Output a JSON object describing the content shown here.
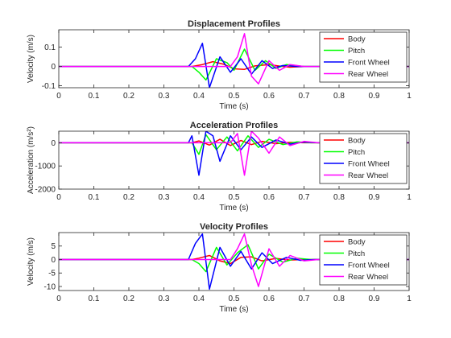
{
  "colors": {
    "Body": "#ff0000",
    "Pitch": "#00ff00",
    "Front Wheel": "#0000ff",
    "Rear Wheel": "#ff00ff"
  },
  "chart_data": [
    {
      "type": "line",
      "title": "Displacement Profiles",
      "xlabel": "Time (s)",
      "ylabel": "Velocity (m/s)",
      "xlim": [
        0,
        1
      ],
      "ylim": [
        -0.11,
        0.19
      ],
      "xticks": [
        "0",
        "0.1",
        "0.2",
        "0.3",
        "0.4",
        "0.5",
        "0.6",
        "0.7",
        "0.8",
        "0.9",
        "1"
      ],
      "yticks": [
        "-0.1",
        "0",
        "0.1"
      ],
      "legend": "top-right",
      "series": [
        {
          "name": "Body",
          "color": "#ff0000",
          "x": [
            0,
            0.38,
            0.41,
            0.44,
            0.47,
            0.5,
            0.53,
            0.56,
            0.6,
            0.63,
            0.66,
            0.7,
            1.0
          ],
          "values": [
            0,
            0,
            0.01,
            0.025,
            0.012,
            -0.012,
            -0.015,
            0.003,
            0.01,
            0.002,
            -0.004,
            0,
            0
          ]
        },
        {
          "name": "Pitch",
          "color": "#00ff00",
          "x": [
            0,
            0.38,
            0.4,
            0.42,
            0.45,
            0.48,
            0.5,
            0.53,
            0.56,
            0.59,
            0.62,
            0.65,
            0.7,
            1.0
          ],
          "values": [
            0,
            0,
            -0.03,
            -0.07,
            0.04,
            0.02,
            -0.02,
            0.09,
            -0.02,
            0.03,
            -0.01,
            0.01,
            0,
            0
          ]
        },
        {
          "name": "Front Wheel",
          "color": "#0000ff",
          "x": [
            0,
            0.37,
            0.39,
            0.41,
            0.43,
            0.46,
            0.49,
            0.52,
            0.55,
            0.58,
            0.61,
            0.64,
            0.68,
            0.72,
            1.0
          ],
          "values": [
            0,
            0,
            0.04,
            0.12,
            -0.11,
            0.05,
            -0.03,
            0.04,
            -0.04,
            0.03,
            -0.01,
            0.005,
            0,
            0,
            0
          ]
        },
        {
          "name": "Rear Wheel",
          "color": "#ff00ff",
          "x": [
            0,
            0.49,
            0.51,
            0.53,
            0.55,
            0.57,
            0.6,
            0.63,
            0.66,
            0.7,
            1.0
          ],
          "values": [
            0,
            0,
            0.05,
            0.17,
            -0.05,
            -0.09,
            0.03,
            -0.02,
            0.01,
            0,
            0
          ]
        }
      ]
    },
    {
      "type": "line",
      "title": "Acceleration Profiles",
      "xlabel": "Time (s)",
      "ylabel": "Acceleration (m/s²)",
      "xlim": [
        0,
        1
      ],
      "ylim": [
        -2000,
        500
      ],
      "xticks": [
        "0",
        "0.1",
        "0.2",
        "0.3",
        "0.4",
        "0.5",
        "0.6",
        "0.7",
        "0.8",
        "0.9",
        "1"
      ],
      "yticks": [
        "-2000",
        "-1000",
        "0"
      ],
      "legend": "top-right",
      "series": [
        {
          "name": "Body",
          "color": "#ff0000",
          "x": [
            0,
            0.38,
            0.4,
            0.43,
            0.46,
            0.49,
            0.52,
            0.55,
            0.58,
            0.62,
            0.66,
            0.7,
            1.0
          ],
          "values": [
            0,
            0,
            80,
            -100,
            150,
            -120,
            100,
            -80,
            60,
            -40,
            20,
            0,
            0
          ]
        },
        {
          "name": "Pitch",
          "color": "#00ff00",
          "x": [
            0,
            0.38,
            0.4,
            0.42,
            0.45,
            0.48,
            0.51,
            0.54,
            0.57,
            0.6,
            0.64,
            0.68,
            0.72,
            1.0
          ],
          "values": [
            0,
            0,
            -500,
            350,
            -300,
            250,
            -350,
            300,
            -200,
            150,
            -80,
            40,
            0,
            0
          ]
        },
        {
          "name": "Front Wheel",
          "color": "#0000ff",
          "x": [
            0,
            0.37,
            0.38,
            0.4,
            0.42,
            0.44,
            0.46,
            0.49,
            0.52,
            0.55,
            0.58,
            0.62,
            0.66,
            0.7,
            0.74,
            1.0
          ],
          "values": [
            0,
            0,
            300,
            -1400,
            500,
            300,
            -800,
            300,
            -300,
            250,
            -200,
            120,
            -60,
            30,
            0,
            0
          ]
        },
        {
          "name": "Rear Wheel",
          "color": "#ff00ff",
          "x": [
            0,
            0.49,
            0.51,
            0.53,
            0.55,
            0.57,
            0.6,
            0.63,
            0.66,
            0.7,
            0.74,
            1.0
          ],
          "values": [
            0,
            0,
            400,
            -1400,
            500,
            200,
            -450,
            250,
            -120,
            60,
            0,
            0
          ]
        }
      ]
    },
    {
      "type": "line",
      "title": "Velocity Profiles",
      "xlabel": "Time (s)",
      "ylabel": "Velocity (m/s)",
      "xlim": [
        0,
        1
      ],
      "ylim": [
        -11.5,
        10
      ],
      "xticks": [
        "0",
        "0.1",
        "0.2",
        "0.3",
        "0.4",
        "0.5",
        "0.6",
        "0.7",
        "0.8",
        "0.9",
        "1"
      ],
      "yticks": [
        "-10",
        "-5",
        "0",
        "5"
      ],
      "legend": "top-right",
      "series": [
        {
          "name": "Body",
          "color": "#ff0000",
          "x": [
            0,
            0.38,
            0.4,
            0.43,
            0.46,
            0.49,
            0.52,
            0.55,
            0.58,
            0.62,
            0.66,
            0.7,
            1.0
          ],
          "values": [
            0,
            0,
            0.5,
            1.5,
            -0.5,
            -1.5,
            0.8,
            1.0,
            -0.5,
            0.4,
            -0.2,
            0,
            0
          ]
        },
        {
          "name": "Pitch",
          "color": "#00ff00",
          "x": [
            0,
            0.38,
            0.4,
            0.42,
            0.45,
            0.48,
            0.51,
            0.54,
            0.57,
            0.6,
            0.64,
            0.68,
            0.72,
            1.0
          ],
          "values": [
            0,
            0,
            -1.5,
            -4.5,
            4.5,
            -2.0,
            2.5,
            5.5,
            -3.5,
            2.0,
            -1.0,
            0.5,
            0,
            0
          ]
        },
        {
          "name": "Front Wheel",
          "color": "#0000ff",
          "x": [
            0,
            0.37,
            0.39,
            0.41,
            0.43,
            0.46,
            0.49,
            0.52,
            0.55,
            0.58,
            0.61,
            0.65,
            0.69,
            0.73,
            1.0
          ],
          "values": [
            0,
            0,
            6,
            9.5,
            -11,
            4.5,
            -2.5,
            3.0,
            -3.5,
            2.5,
            -1.5,
            0.8,
            -0.3,
            0,
            0
          ]
        },
        {
          "name": "Rear Wheel",
          "color": "#ff00ff",
          "x": [
            0,
            0.49,
            0.51,
            0.53,
            0.55,
            0.57,
            0.6,
            0.63,
            0.66,
            0.7,
            0.74,
            1.0
          ],
          "values": [
            0,
            0,
            4,
            9.5,
            -2,
            -10,
            4,
            -2.5,
            1.5,
            -0.5,
            0,
            0
          ]
        }
      ]
    }
  ]
}
